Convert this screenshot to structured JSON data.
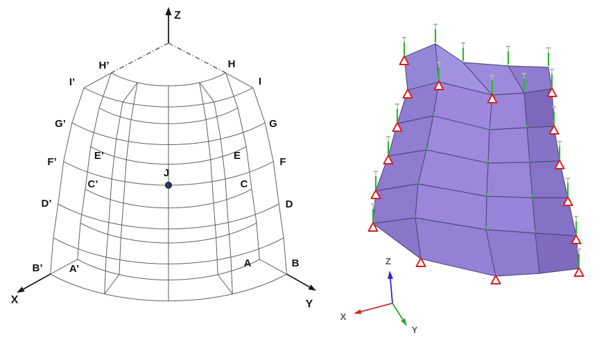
{
  "left_panel": {
    "labels": {
      "Z": "Z",
      "Hp": "H’",
      "H": "H",
      "Ip": "I’",
      "I": "I",
      "Gp": "G’",
      "G": "G",
      "Fp": "F’",
      "F": "F",
      "Ep": "E’",
      "E": "E",
      "Cp": "C’",
      "C": "C",
      "Dp": "D’",
      "D": "D",
      "Bp": "B’",
      "Ap": "A’",
      "A": "A",
      "B": "B",
      "X": "X",
      "Y": "Y",
      "J": "J"
    },
    "line_color": "#5e5e5e",
    "label_color": "#141414",
    "axis_color": "#1a1a1a",
    "point_j_color": "#2b3a66"
  },
  "right_panel": {
    "axis_labels": {
      "X": "X",
      "Y": "Y",
      "Z": "Z"
    },
    "axis_label_color": "#5a5a5a",
    "mesh_line_color": "#544a80",
    "support_color": "#d42222",
    "pin_color": "#2db92d",
    "pin_cap_color": "#b5b5b5",
    "axis_colors": {
      "x": "#cf2a2a",
      "y": "#27a827",
      "z": "#2a2ad0"
    },
    "mesh_fills": [
      [
        "#9486d6",
        "#a293e2",
        "#9c8bdd",
        "#8e7cd0"
      ],
      [
        "#8f7bd0",
        "#9d88de",
        "#9a85db",
        "#7d68bd"
      ],
      [
        "#917dd2",
        "#9e89df",
        "#9b86dc",
        "#8673c7"
      ],
      [
        "#8f7bd0",
        "#9c87dd",
        "#9a85db",
        "#8773c8"
      ],
      [
        "#8d79ce",
        "#9b86dc",
        "#9884da",
        "#8571c6"
      ],
      [
        "#8a76ca",
        "#9480d4",
        "#8f7cce",
        "#7f6ac0"
      ]
    ],
    "symbols": {
      "support": "pinned-support-triangle",
      "pin": "restraint-pin",
      "node_tick": "node-tick"
    }
  }
}
